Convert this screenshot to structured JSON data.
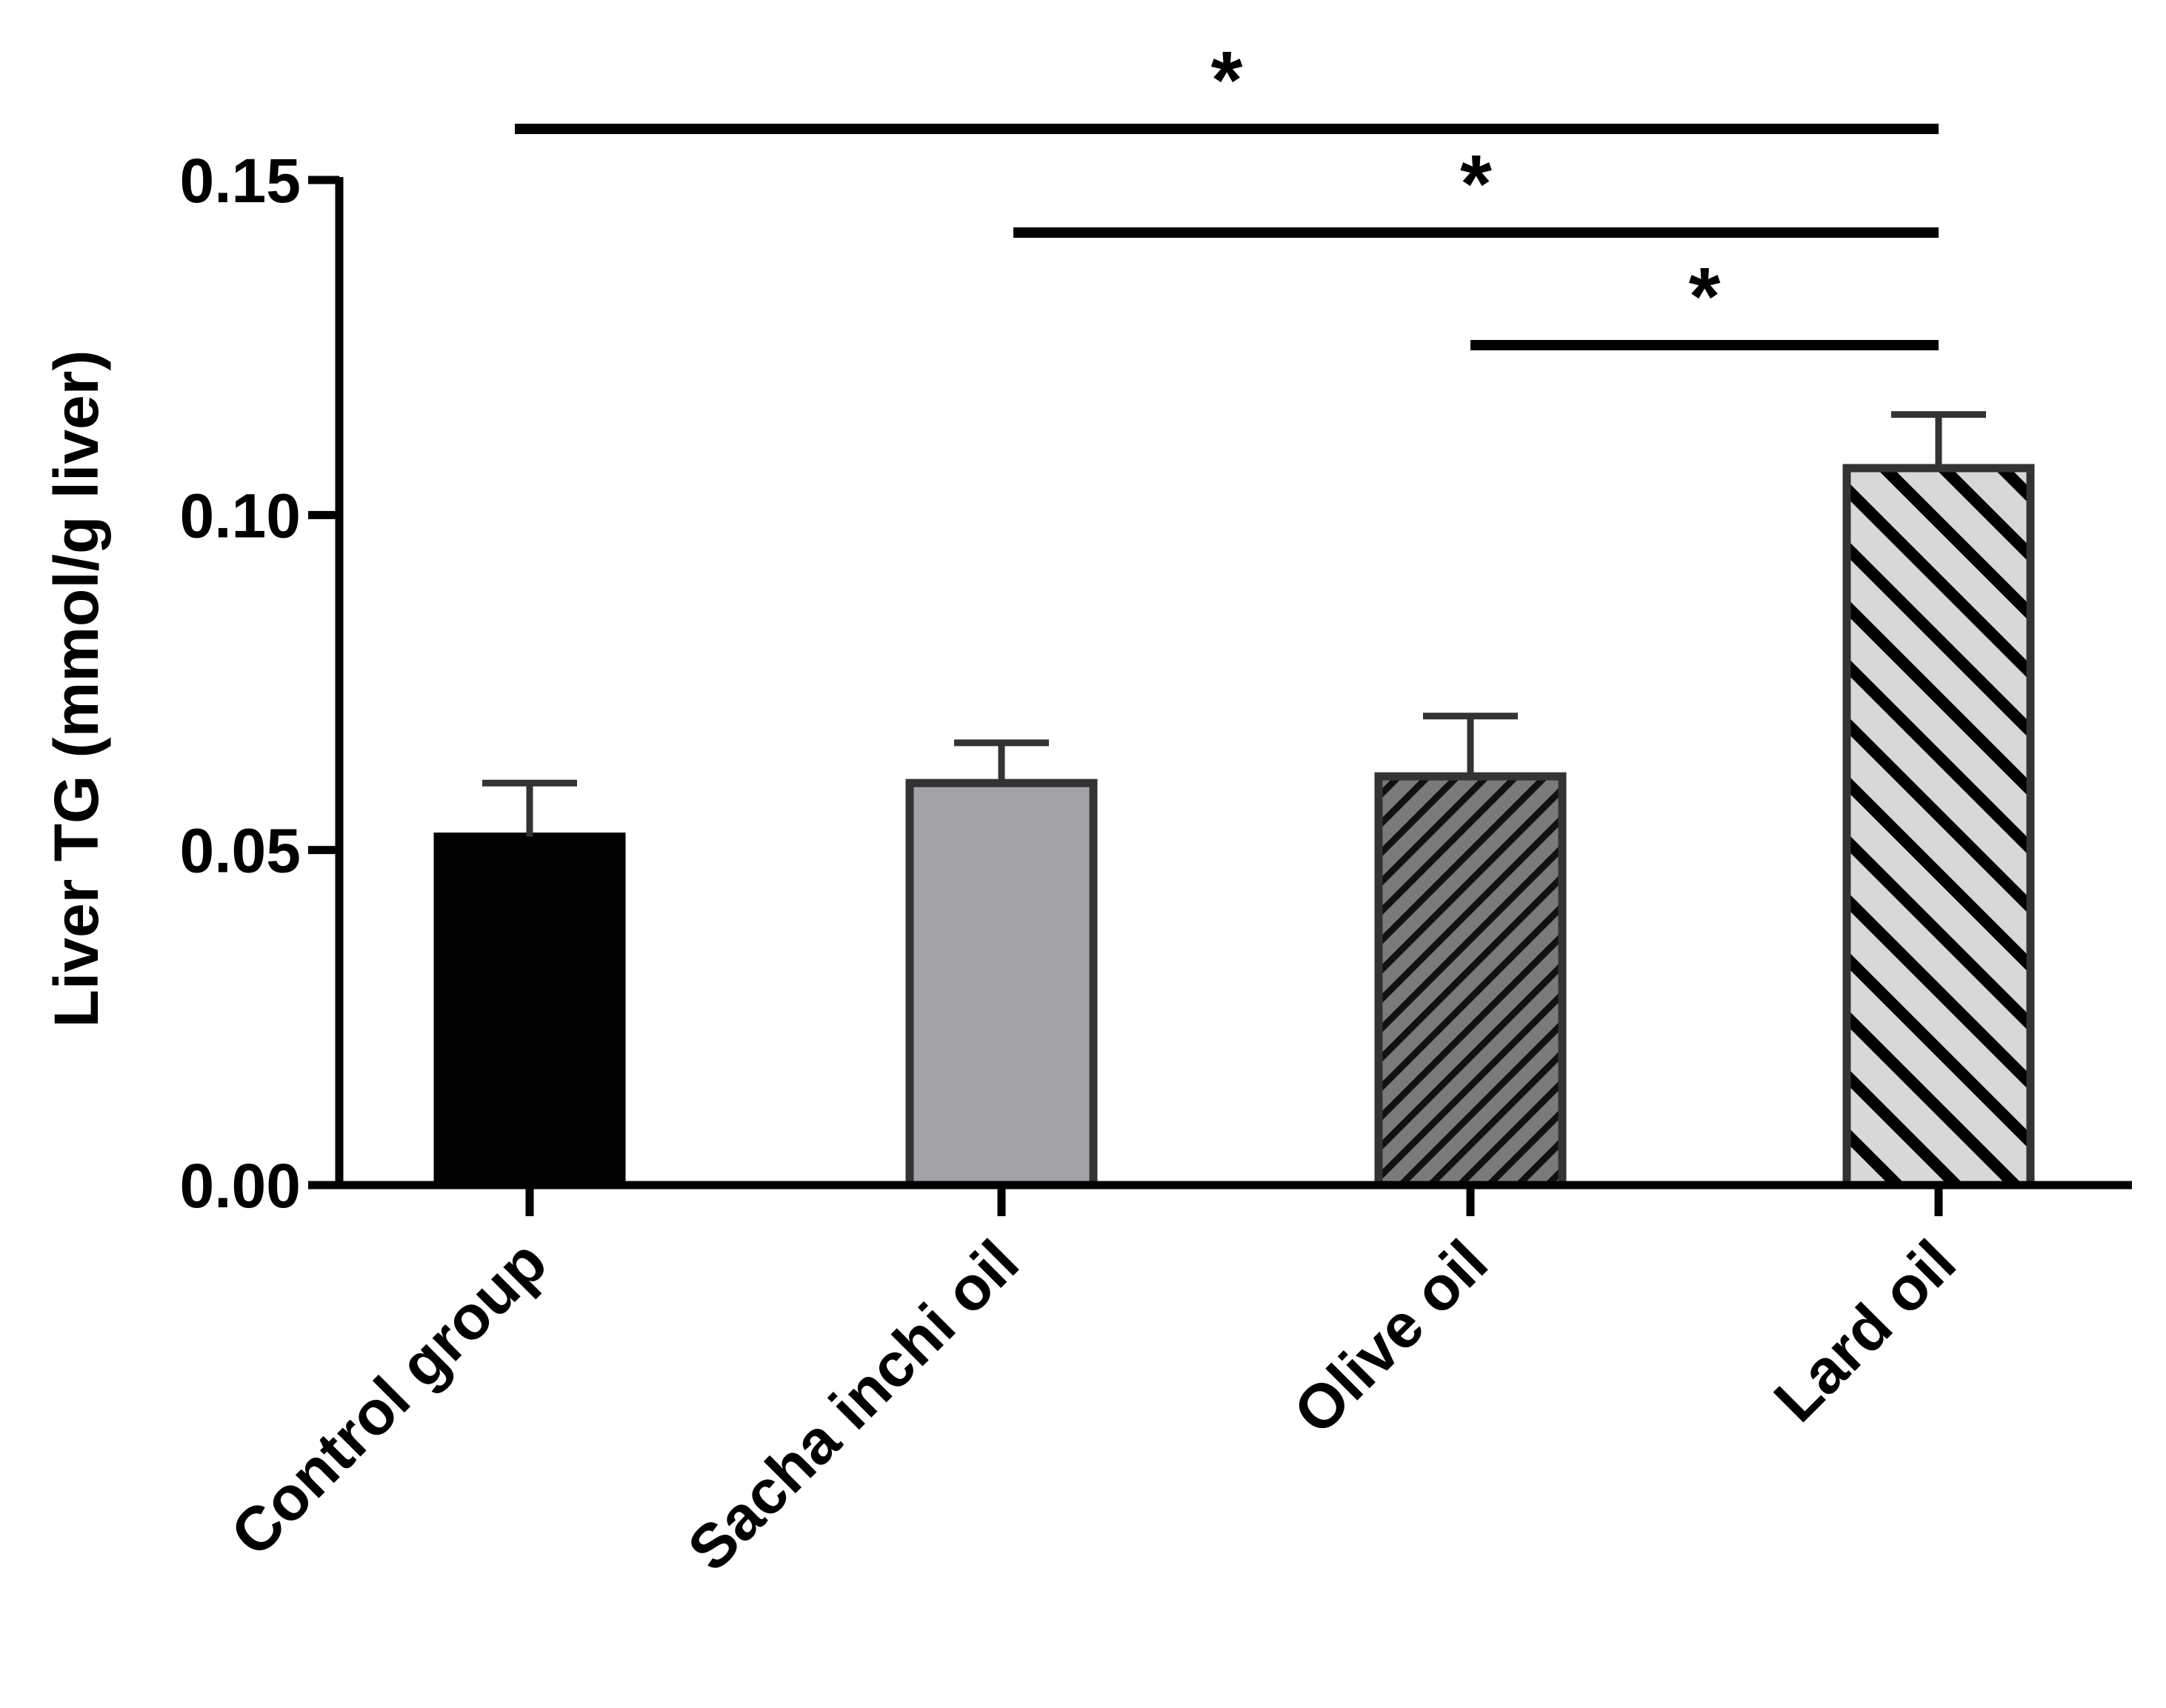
{
  "chart_data": {
    "type": "bar",
    "title": "",
    "xlabel": "",
    "ylabel": "Liver TG (mmol/g liver)",
    "ylim": [
      0,
      0.15
    ],
    "yticks": [
      0.0,
      0.05,
      0.1,
      0.15
    ],
    "ytick_labels": [
      "0.00",
      "0.05",
      "0.10",
      "0.15"
    ],
    "grid": false,
    "legend": "none",
    "categories": [
      "Control group",
      "Sacha inchi oil",
      "Olive oil",
      "Lard oil"
    ],
    "values": [
      0.052,
      0.06,
      0.061,
      0.107
    ],
    "errors": [
      0.008,
      0.006,
      0.009,
      0.008
    ],
    "bar_styles": [
      {
        "fill": "#000000",
        "pattern": "solid"
      },
      {
        "fill": "#a3a2a7",
        "pattern": "solid"
      },
      {
        "fill": "#7a7a7a",
        "pattern": "dense-diagonal"
      },
      {
        "fill": "#d8d8d8",
        "pattern": "wide-diagonal"
      }
    ],
    "bar_edge_color": "#333333",
    "significance": [
      {
        "from": 0,
        "to": 3,
        "label": "*"
      },
      {
        "from": 1,
        "to": 3,
        "label": "*"
      },
      {
        "from": 2,
        "to": 3,
        "label": "*"
      }
    ]
  }
}
